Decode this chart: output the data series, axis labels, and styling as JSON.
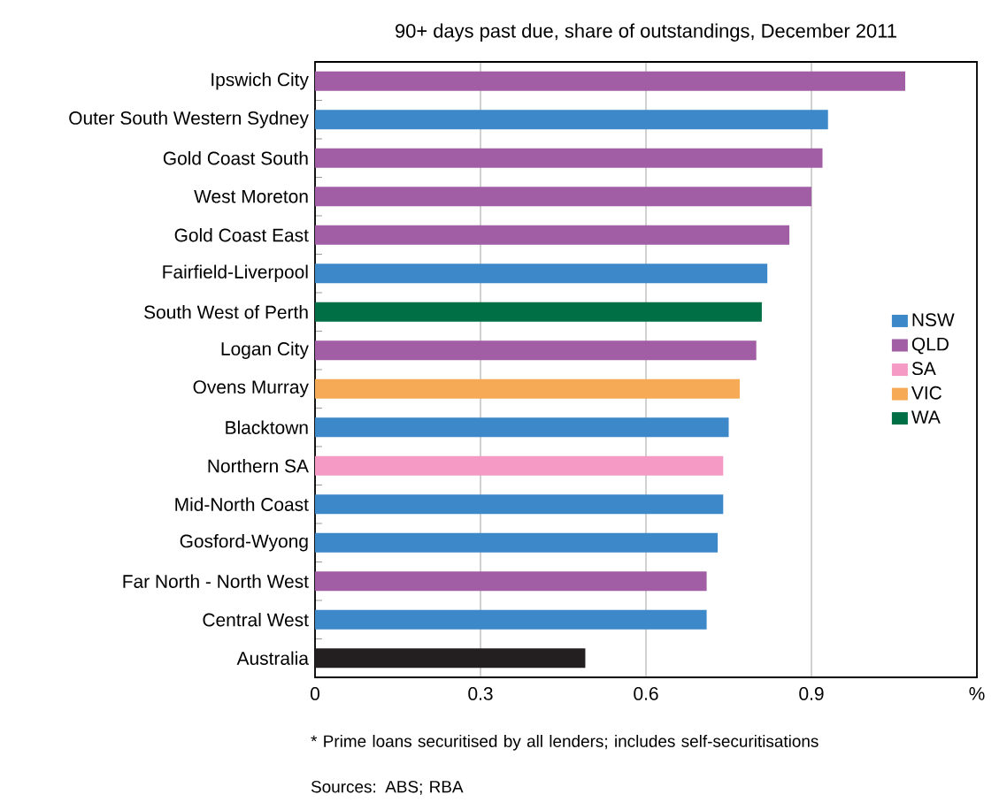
{
  "chart_data": {
    "type": "bar",
    "orientation": "horizontal",
    "subtitle": "90+ days past due, share of outstandings, December 2011",
    "categories": [
      "Ipswich City",
      "Outer South Western Sydney",
      "Gold Coast South",
      "West Moreton",
      "Gold Coast East",
      "Fairfield-Liverpool",
      "South West of Perth",
      "Logan City",
      "Ovens Murray",
      "Blacktown",
      "Northern SA",
      "Mid-North Coast",
      "Gosford-Wyong",
      "Far North - North West",
      "Central West",
      "Australia"
    ],
    "series": [
      {
        "name": "NSW",
        "color": "#3c88c8",
        "values": [
          null,
          0.93,
          null,
          null,
          null,
          0.82,
          null,
          null,
          null,
          0.75,
          null,
          0.74,
          0.73,
          null,
          0.71,
          null
        ]
      },
      {
        "name": "QLD",
        "color": "#a15ea5",
        "values": [
          1.07,
          null,
          0.92,
          0.9,
          0.86,
          null,
          null,
          0.8,
          null,
          null,
          null,
          null,
          null,
          0.71,
          null,
          null
        ]
      },
      {
        "name": "SA",
        "color": "#f49ac4",
        "values": [
          null,
          null,
          null,
          null,
          null,
          null,
          null,
          null,
          null,
          null,
          0.74,
          null,
          null,
          null,
          null,
          null
        ]
      },
      {
        "name": "VIC",
        "color": "#f7aa55",
        "values": [
          null,
          null,
          null,
          null,
          null,
          null,
          null,
          null,
          0.77,
          null,
          null,
          null,
          null,
          null,
          null,
          null
        ]
      },
      {
        "name": "WA",
        "color": "#006f46",
        "values": [
          null,
          null,
          null,
          null,
          null,
          null,
          0.81,
          null,
          null,
          null,
          null,
          null,
          null,
          null,
          null,
          null
        ]
      },
      {
        "color": "#231f20",
        "values": [
          null,
          null,
          null,
          null,
          null,
          null,
          null,
          null,
          null,
          null,
          null,
          null,
          null,
          null,
          null,
          0.49
        ]
      }
    ],
    "xlim": [
      0,
      1.2
    ],
    "xticks": [
      0,
      0.3,
      0.6,
      0.9,
      {
        "value": 1.2,
        "label": "%"
      }
    ],
    "grid": "x",
    "legend": "right",
    "annotations": [
      "* Prime loans securitised by all lenders; includes self-securitisations",
      "Sources: ABS; RBA"
    ]
  }
}
